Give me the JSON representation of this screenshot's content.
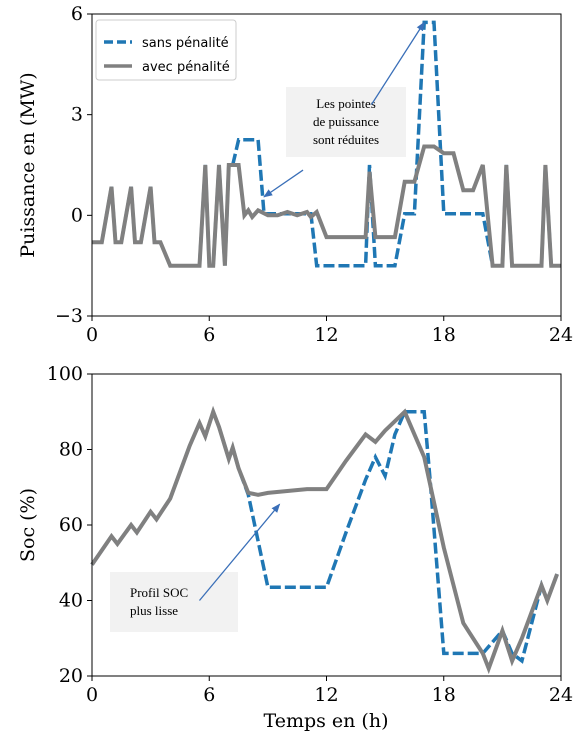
{
  "chart_data": [
    {
      "type": "line",
      "ylabel": "Puissance en (MW)",
      "xlabel": "",
      "xlim": [
        0,
        24
      ],
      "ylim": [
        -3,
        6
      ],
      "xticks": [
        0,
        6,
        12,
        18,
        24
      ],
      "yticks": [
        -3,
        0,
        3,
        6
      ],
      "xtick_labels": [
        "0",
        "6",
        "12",
        "18",
        "24"
      ],
      "ytick_labels": [
        "−3",
        "0",
        "3",
        "6"
      ],
      "legend_position": "top-left",
      "series": [
        {
          "name": "sans pénalité",
          "style": "dashed",
          "color": "#1f77b4",
          "x": [
            0,
            0.5,
            1,
            1.2,
            1.5,
            2,
            2.2,
            2.5,
            3,
            3.2,
            3.5,
            4,
            4.5,
            5,
            5.5,
            5.8,
            6,
            6.2,
            6.5,
            6.8,
            7,
            7.2,
            7.5,
            8,
            8.5,
            8.8,
            9,
            9.5,
            10,
            10.5,
            11,
            11.2,
            11.5,
            12,
            12.5,
            13,
            13.5,
            14,
            14.2,
            14.5,
            14.8,
            15,
            15.5,
            16,
            16.5,
            17,
            17.2,
            17.5,
            18,
            18.5,
            19,
            19.5,
            20,
            20.5,
            21,
            21.2,
            21.5,
            22,
            22.5,
            23,
            23.2,
            23.5,
            24
          ],
          "y": [
            -0.8,
            -0.8,
            0.85,
            -0.8,
            -0.8,
            0.85,
            -0.8,
            -0.8,
            0.85,
            -0.8,
            -0.8,
            -1.5,
            -1.5,
            -1.5,
            -1.5,
            1.5,
            -1.5,
            -1.5,
            1.5,
            -1.5,
            1.5,
            1.5,
            2.25,
            2.25,
            2.25,
            0.05,
            0.05,
            0.05,
            0.05,
            0.05,
            0.05,
            0.05,
            -1.5,
            -1.5,
            -1.5,
            -1.5,
            -1.5,
            -1.5,
            1.5,
            -1.5,
            -1.5,
            -1.5,
            -1.5,
            0.05,
            0.05,
            5.75,
            5.75,
            5.75,
            0.05,
            0.05,
            0.05,
            0.05,
            0.05,
            -1.5,
            -1.5,
            1.5,
            -1.5,
            -1.5,
            -1.5,
            -1.5,
            1.5,
            -1.5,
            -1.5
          ]
        },
        {
          "name": "avec pénalité",
          "style": "solid",
          "color": "#808080",
          "x": [
            0,
            0.5,
            1,
            1.2,
            1.5,
            2,
            2.2,
            2.5,
            3,
            3.2,
            3.5,
            4,
            4.5,
            5,
            5.5,
            5.8,
            6,
            6.2,
            6.5,
            6.8,
            7,
            7.2,
            7.5,
            7.8,
            8,
            8.2,
            8.5,
            9,
            9.5,
            10,
            10.5,
            11,
            11.2,
            11.5,
            12,
            12.5,
            13,
            13.5,
            14,
            14.2,
            14.5,
            14.8,
            15,
            15.5,
            16,
            16.5,
            17,
            17.2,
            17.5,
            18,
            18.5,
            19,
            19.5,
            20,
            20.5,
            21,
            21.2,
            21.5,
            22,
            22.5,
            23,
            23.2,
            23.5,
            24
          ],
          "y": [
            -0.8,
            -0.8,
            0.85,
            -0.8,
            -0.8,
            0.85,
            -0.8,
            -0.8,
            0.85,
            -0.8,
            -0.8,
            -1.5,
            -1.5,
            -1.5,
            -1.5,
            1.5,
            -1.5,
            -1.5,
            1.5,
            -1.5,
            1.5,
            1.5,
            1.5,
            0.0,
            0.15,
            -0.05,
            0.15,
            0.0,
            0.0,
            0.1,
            0.0,
            0.1,
            -0.05,
            0.1,
            -0.65,
            -0.65,
            -0.65,
            -0.65,
            -0.65,
            1.3,
            -0.65,
            -0.65,
            -0.65,
            -0.65,
            1.0,
            1.0,
            2.05,
            2.05,
            2.05,
            1.85,
            1.85,
            0.75,
            0.75,
            1.5,
            -1.5,
            -1.5,
            1.5,
            -1.5,
            -1.5,
            -1.5,
            -1.5,
            1.5,
            -1.5,
            -1.5
          ]
        }
      ],
      "annotation": {
        "text_lines": [
          "Les pointes",
          "de puissance",
          "sont réduites"
        ],
        "arrows": [
          {
            "from_x": 10.8,
            "from_y": 1.35,
            "to_x": 8.8,
            "to_y": 0.55
          },
          {
            "from_x": 14.3,
            "from_y": 3.3,
            "to_x": 17.0,
            "to_y": 5.75
          }
        ]
      }
    },
    {
      "type": "line",
      "ylabel": "Soc (%)",
      "xlabel": "Temps en (h)",
      "xlim": [
        0,
        24
      ],
      "ylim": [
        20,
        100
      ],
      "xticks": [
        0,
        6,
        12,
        18,
        24
      ],
      "yticks": [
        20,
        40,
        60,
        80,
        100
      ],
      "xtick_labels": [
        "0",
        "6",
        "12",
        "18",
        "24"
      ],
      "ytick_labels": [
        "20",
        "40",
        "60",
        "80",
        "100"
      ],
      "series": [
        {
          "name": "",
          "style": "dashed",
          "color": "#1f77b4",
          "x": [
            0,
            1,
            1.3,
            2,
            2.3,
            3,
            3.3,
            4,
            5,
            5.5,
            5.8,
            6.2,
            6.5,
            7,
            7.2,
            7.5,
            8,
            9,
            10,
            11,
            12,
            13,
            14,
            14.5,
            15,
            15.5,
            16,
            16.5,
            17,
            17.3,
            18,
            19,
            20,
            21,
            21.5,
            22,
            23,
            23.3,
            23.8
          ],
          "y": [
            49.5,
            57,
            55,
            60,
            58,
            63.5,
            61.5,
            67,
            81,
            87,
            83.5,
            90,
            86,
            77.5,
            80.5,
            75,
            68,
            43.5,
            43.5,
            43.5,
            43.5,
            58,
            72,
            78,
            73,
            84,
            90,
            90,
            90,
            72,
            26,
            26,
            26,
            32,
            26,
            24,
            44,
            40,
            47
          ]
        },
        {
          "name": "",
          "style": "solid",
          "color": "#808080",
          "x": [
            0,
            1,
            1.3,
            2,
            2.3,
            3,
            3.3,
            4,
            5,
            5.5,
            5.8,
            6.2,
            6.5,
            7,
            7.2,
            7.5,
            8,
            8.5,
            9,
            10,
            11,
            11.5,
            12,
            13,
            14,
            14.5,
            15,
            16,
            17,
            18,
            19,
            20,
            20.3,
            21,
            21.5,
            22,
            23,
            23.3,
            23.8
          ],
          "y": [
            49.5,
            57,
            55,
            60,
            58,
            63.5,
            61.5,
            67,
            81,
            87,
            83.5,
            90,
            86,
            77.5,
            80.5,
            75,
            68.5,
            68,
            68.5,
            69,
            69.5,
            69.5,
            69.5,
            77,
            84,
            82,
            85,
            90,
            78,
            54,
            34,
            26,
            22,
            32,
            24,
            30,
            44,
            40,
            47
          ]
        }
      ],
      "annotation": {
        "text_lines": [
          "Profil SOC",
          "plus lisse"
        ],
        "arrows": [
          {
            "from_x": 5.5,
            "from_y": 40,
            "to_x": 9.6,
            "to_y": 65.5
          }
        ]
      }
    }
  ]
}
